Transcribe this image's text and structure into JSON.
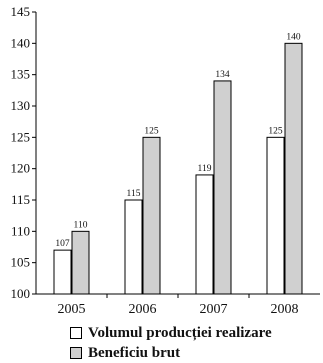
{
  "chart_data": {
    "type": "bar",
    "categories": [
      "2005",
      "2006",
      "2007",
      "2008"
    ],
    "series": [
      {
        "name": "Volumul producției realizare",
        "values": [
          107,
          115,
          119,
          125
        ],
        "color": "#ffffff"
      },
      {
        "name": "Beneficiu brut",
        "values": [
          110,
          125,
          134,
          140
        ],
        "color": "#d0d0d0"
      }
    ],
    "ylim": [
      100,
      145
    ],
    "yticks": [
      100,
      105,
      110,
      115,
      120,
      125,
      130,
      135,
      140,
      145
    ],
    "legend_placement": "bottom",
    "grid": false
  }
}
